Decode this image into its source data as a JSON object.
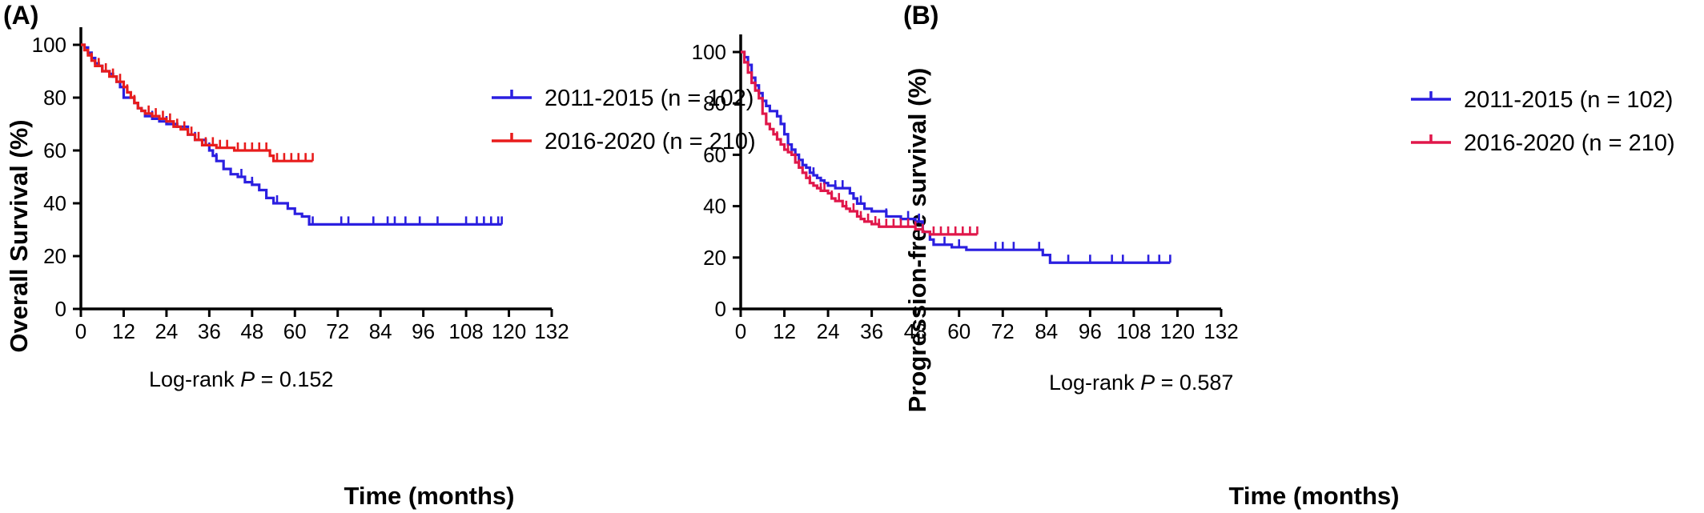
{
  "colors": {
    "blue": "#2B1FE0",
    "red": "#E81C1C",
    "crimson": "#E0174A",
    "axis": "#000000"
  },
  "chart_data": [
    {
      "type": "line",
      "subtype": "kaplan-meier",
      "panel_label": "(A)",
      "xlabel": "Time (months)",
      "ylabel": "Overall Survival (%)",
      "xlim": [
        0,
        132
      ],
      "ylim": [
        0,
        100
      ],
      "xticks": [
        "0",
        "12",
        "24",
        "36",
        "48",
        "60",
        "72",
        "84",
        "96",
        "108",
        "120",
        "132"
      ],
      "yticks": [
        "0",
        "20",
        "40",
        "60",
        "80",
        "100"
      ],
      "legend_position": "top-right",
      "annotation": {
        "prefix": "Log-rank ",
        "p": "P",
        "suffix": " = 0.152"
      },
      "series": [
        {
          "name": "2011-2015 (n = 102)",
          "color": "#2B1FE0",
          "steps": [
            [
              0,
              100
            ],
            [
              1,
              99
            ],
            [
              2,
              97
            ],
            [
              3,
              95
            ],
            [
              4,
              93
            ],
            [
              5,
              92
            ],
            [
              6,
              90
            ],
            [
              8,
              89
            ],
            [
              9,
              88
            ],
            [
              10,
              86
            ],
            [
              11,
              84
            ],
            [
              12,
              80
            ],
            [
              15,
              78
            ],
            [
              16,
              76
            ],
            [
              17,
              75
            ],
            [
              18,
              73
            ],
            [
              20,
              72
            ],
            [
              22,
              71
            ],
            [
              24,
              70
            ],
            [
              27,
              69
            ],
            [
              30,
              66
            ],
            [
              32,
              64
            ],
            [
              35,
              62
            ],
            [
              36,
              60
            ],
            [
              37,
              58
            ],
            [
              38,
              56
            ],
            [
              40,
              53
            ],
            [
              42,
              51
            ],
            [
              44,
              50
            ],
            [
              46,
              48
            ],
            [
              48,
              47
            ],
            [
              50,
              45
            ],
            [
              52,
              42
            ],
            [
              54,
              40
            ],
            [
              58,
              38
            ],
            [
              60,
              36
            ],
            [
              62,
              35
            ],
            [
              64,
              32
            ],
            [
              118,
              32
            ]
          ],
          "censor_x": [
            12,
            20,
            24,
            32,
            36,
            38,
            45,
            48,
            55,
            65,
            73,
            75,
            82,
            86,
            88,
            91,
            95,
            100,
            108,
            111,
            113,
            115,
            117,
            118
          ]
        },
        {
          "name": "2016-2020 (n = 210)",
          "color": "#E81C1C",
          "steps": [
            [
              0,
              100
            ],
            [
              1,
              98
            ],
            [
              2,
              96
            ],
            [
              3,
              94
            ],
            [
              4,
              92
            ],
            [
              6,
              90
            ],
            [
              8,
              88
            ],
            [
              10,
              86
            ],
            [
              12,
              84
            ],
            [
              13,
              82
            ],
            [
              14,
              80
            ],
            [
              15,
              78
            ],
            [
              16,
              76
            ],
            [
              17,
              75
            ],
            [
              18,
              74
            ],
            [
              20,
              73
            ],
            [
              22,
              72
            ],
            [
              24,
              71
            ],
            [
              26,
              69
            ],
            [
              28,
              68
            ],
            [
              30,
              66
            ],
            [
              32,
              64
            ],
            [
              34,
              62
            ],
            [
              38,
              61
            ],
            [
              43,
              60
            ],
            [
              53,
              58
            ],
            [
              54,
              56
            ],
            [
              65,
              56
            ]
          ],
          "censor_x": [
            3,
            5,
            7,
            9,
            11,
            13,
            15,
            19,
            21,
            23,
            25,
            27,
            29,
            31,
            33,
            35,
            37,
            39,
            41,
            44,
            46,
            48,
            50,
            52,
            55,
            57,
            59,
            61,
            63,
            65
          ]
        }
      ]
    },
    {
      "type": "line",
      "subtype": "kaplan-meier",
      "panel_label": "(B)",
      "xlabel": "Time (months)",
      "ylabel": "Progression-free  survival (%)",
      "xlim": [
        0,
        132
      ],
      "ylim": [
        0,
        100
      ],
      "xticks": [
        "0",
        "12",
        "24",
        "36",
        "48",
        "60",
        "72",
        "84",
        "96",
        "108",
        "120",
        "132"
      ],
      "yticks": [
        "0",
        "20",
        "40",
        "60",
        "80",
        "100"
      ],
      "legend_position": "top-right",
      "annotation": {
        "prefix": "Log-rank ",
        "p": "P",
        "suffix": " = 0.587"
      },
      "series": [
        {
          "name": "2011-2015 (n = 102)",
          "color": "#2B1FE0",
          "steps": [
            [
              0,
              100
            ],
            [
              1,
              98
            ],
            [
              2,
              95
            ],
            [
              3,
              90
            ],
            [
              4,
              87
            ],
            [
              5,
              84
            ],
            [
              6,
              81
            ],
            [
              7,
              79
            ],
            [
              8,
              77
            ],
            [
              10,
              75
            ],
            [
              11,
              72
            ],
            [
              12,
              68
            ],
            [
              13,
              64
            ],
            [
              14,
              62
            ],
            [
              15,
              60
            ],
            [
              16,
              58
            ],
            [
              17,
              56
            ],
            [
              18,
              55
            ],
            [
              19,
              53
            ],
            [
              20,
              52
            ],
            [
              21,
              51
            ],
            [
              22,
              50
            ],
            [
              23,
              49
            ],
            [
              24,
              48
            ],
            [
              26,
              47
            ],
            [
              30,
              45
            ],
            [
              31,
              43
            ],
            [
              32,
              41
            ],
            [
              34,
              39
            ],
            [
              36,
              38
            ],
            [
              40,
              36
            ],
            [
              44,
              35
            ],
            [
              48,
              34
            ],
            [
              50,
              30
            ],
            [
              52,
              27
            ],
            [
              53,
              25
            ],
            [
              58,
              24
            ],
            [
              62,
              23
            ],
            [
              80,
              23
            ],
            [
              83,
              21
            ],
            [
              85,
              18
            ],
            [
              118,
              18
            ]
          ],
          "censor_x": [
            20,
            26,
            28,
            33,
            40,
            46,
            49,
            56,
            60,
            70,
            72,
            75,
            82,
            90,
            96,
            102,
            105,
            112,
            115,
            118
          ]
        },
        {
          "name": "2016-2020 (n = 210)",
          "color": "#E0174A",
          "steps": [
            [
              0,
              100
            ],
            [
              1,
              96
            ],
            [
              2,
              92
            ],
            [
              3,
              88
            ],
            [
              4,
              85
            ],
            [
              5,
              82
            ],
            [
              6,
              76
            ],
            [
              7,
              72
            ],
            [
              8,
              70
            ],
            [
              9,
              68
            ],
            [
              10,
              66
            ],
            [
              11,
              64
            ],
            [
              12,
              62
            ],
            [
              13,
              61
            ],
            [
              14,
              60
            ],
            [
              15,
              57
            ],
            [
              16,
              55
            ],
            [
              17,
              53
            ],
            [
              18,
              51
            ],
            [
              19,
              49
            ],
            [
              20,
              48
            ],
            [
              21,
              47
            ],
            [
              22,
              46
            ],
            [
              24,
              45
            ],
            [
              25,
              43
            ],
            [
              26,
              42
            ],
            [
              28,
              40
            ],
            [
              29,
              39
            ],
            [
              30,
              38
            ],
            [
              32,
              36
            ],
            [
              33,
              35
            ],
            [
              34,
              34
            ],
            [
              36,
              33
            ],
            [
              38,
              32
            ],
            [
              48,
              31
            ],
            [
              50,
              30
            ],
            [
              52,
              29
            ],
            [
              65,
              29
            ]
          ],
          "censor_x": [
            4,
            7,
            10,
            13,
            16,
            19,
            22,
            23,
            25,
            27,
            29,
            31,
            33,
            35,
            37,
            38,
            40,
            42,
            44,
            46,
            48,
            50,
            53,
            55,
            57,
            59,
            61,
            63,
            65
          ]
        }
      ]
    }
  ]
}
